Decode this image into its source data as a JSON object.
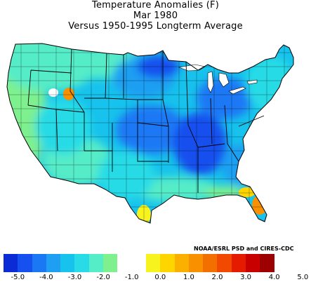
{
  "title": {
    "line1": "Temperature Anomalies (F)",
    "line2": "Mar 1980",
    "line3": "Versus 1950-1995 Longterm Average"
  },
  "credit": "NOAA/ESRL PSD and CIRES-CDC",
  "legend": {
    "colors": [
      "#0a2bd6",
      "#1650ee",
      "#1b78f5",
      "#1e9ff2",
      "#17c2ec",
      "#28dbe6",
      "#55ecc8",
      "#7ef08e",
      "#ffffff",
      "#ffffff",
      "#f7f31e",
      "#ffd500",
      "#fbb000",
      "#f99000",
      "#f36f00",
      "#f14a00",
      "#e51b00",
      "#c80000",
      "#9c0000"
    ],
    "tick_labels": [
      "-5.0",
      "-4.0",
      "-3.0",
      "-2.0",
      "-1.0",
      "0.0",
      "1.0",
      "2.0",
      "3.0",
      "4.0",
      "5.0"
    ],
    "tick_values": [
      -5,
      -4,
      -3,
      -2,
      -1,
      0,
      1,
      2,
      3,
      4,
      5
    ]
  },
  "map": {
    "region": "Contiguous United States",
    "units": "F",
    "period": "Mar 1980",
    "features": [
      {
        "area": "Pacific Northwest",
        "anomaly": -1.0
      },
      {
        "area": "California coast",
        "anomaly": -1.0
      },
      {
        "area": "Great Basin",
        "anomaly": -2.0
      },
      {
        "area": "Southern Idaho spot",
        "anomaly": 1.5
      },
      {
        "area": "Northern Plains",
        "anomaly": -3.0
      },
      {
        "area": "Upper Midwest",
        "anomaly": -4.5
      },
      {
        "area": "Central Plains",
        "anomaly": -3.5
      },
      {
        "area": "Mississippi Valley",
        "anomaly": -4.5
      },
      {
        "area": "Southwest",
        "anomaly": -2.0
      },
      {
        "area": "Great Lakes",
        "anomaly": -3.0
      },
      {
        "area": "Northeast",
        "anomaly": -2.0
      },
      {
        "area": "Southeast",
        "anomaly": -2.5
      },
      {
        "area": "Gulf Coast",
        "anomaly": -1.0
      },
      {
        "area": "South Texas",
        "anomaly": 0.8
      },
      {
        "area": "Florida Panhandle",
        "anomaly": 1.2
      },
      {
        "area": "Peninsular Florida",
        "anomaly": 2.5
      }
    ]
  }
}
